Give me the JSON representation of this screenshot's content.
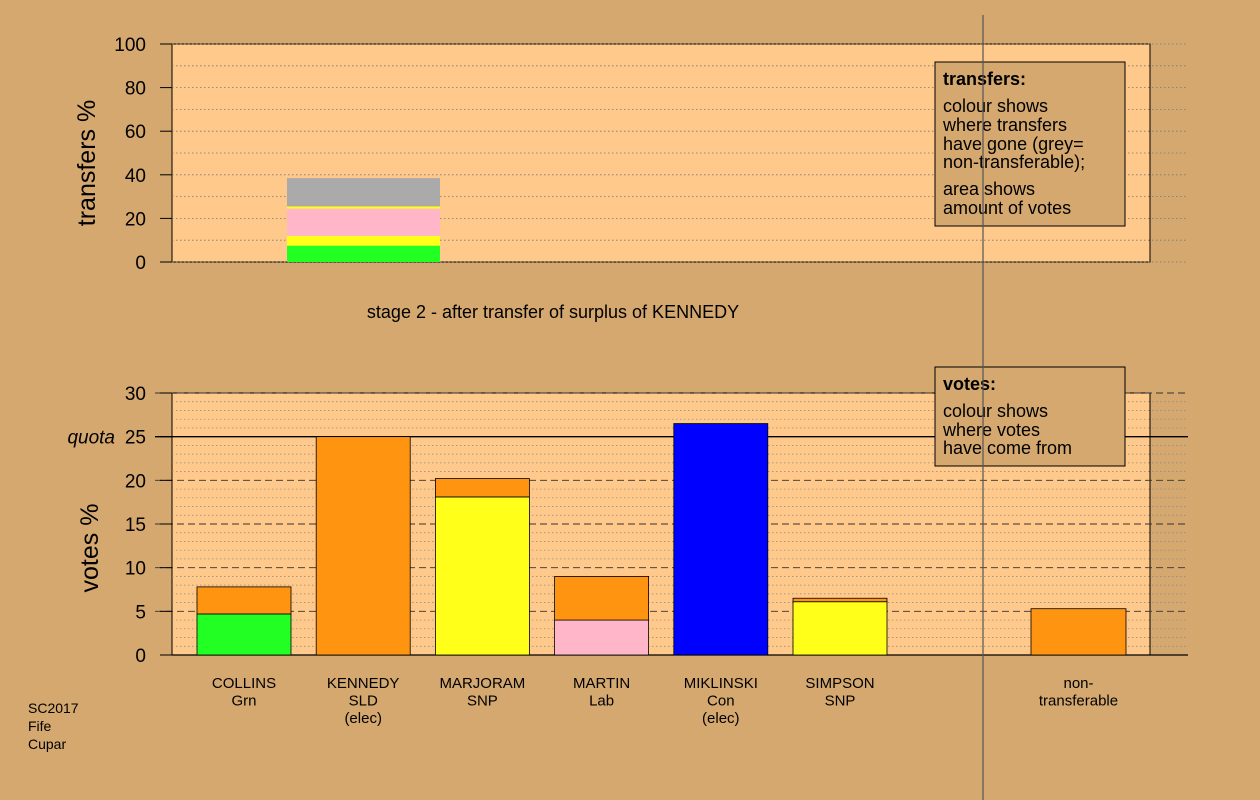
{
  "chart_data": [
    {
      "type": "bar",
      "subtype": "stacked",
      "panel": "transfers",
      "ylabel": "transfers %",
      "ylim": [
        0,
        100
      ],
      "yticks": [
        0,
        20,
        40,
        60,
        80,
        100
      ],
      "caption": "stage 2 - after transfer of surplus of KENNEDY",
      "legend": {
        "position": "top-right",
        "title": "transfers:",
        "lines1": [
          "colour shows",
          "where transfers",
          "have gone (grey=",
          "non-transferable);"
        ],
        "lines2": [
          "area shows",
          "amount of votes"
        ]
      },
      "bars": [
        {
          "name": "KENNEDY",
          "segments": [
            {
              "to": "COLLINS",
              "color": "#22ff22",
              "value": 7.5
            },
            {
              "to": "MARJORAM",
              "color": "#ffff1a",
              "value": 4.5
            },
            {
              "to": "MARTIN",
              "color": "#ffb6c8",
              "value": 12.5
            },
            {
              "to": "SIMPSON",
              "color": "#ffff1a",
              "value": 1.0
            },
            {
              "to": "non-transferable",
              "color": "#aaaaaa",
              "value": 13.0
            }
          ]
        }
      ]
    },
    {
      "type": "bar",
      "subtype": "stacked",
      "panel": "votes",
      "ylabel": "votes %",
      "ylim": [
        0,
        30
      ],
      "yticks": [
        0,
        5,
        10,
        15,
        20,
        25,
        30
      ],
      "quota": 25,
      "quota_label": "quota",
      "legend": {
        "position": "top-right",
        "title": "votes:",
        "lines": [
          "colour shows",
          "where votes",
          "have come from"
        ]
      },
      "candidates": [
        {
          "name": "COLLINS",
          "party": "Grn",
          "status": "",
          "segments": [
            {
              "color": "#22ff22",
              "value": 4.7
            },
            {
              "color": "#ff9411",
              "value": 3.1
            }
          ]
        },
        {
          "name": "KENNEDY",
          "party": "SLD",
          "status": "(elec)",
          "segments": [
            {
              "color": "#ff9411",
              "value": 25.0
            }
          ]
        },
        {
          "name": "MARJORAM",
          "party": "SNP",
          "status": "",
          "segments": [
            {
              "color": "#ffff1a",
              "value": 18.1
            },
            {
              "color": "#ff9411",
              "value": 2.1
            }
          ]
        },
        {
          "name": "MARTIN",
          "party": "Lab",
          "status": "",
          "segments": [
            {
              "color": "#ffb6c8",
              "value": 4.0
            },
            {
              "color": "#ff9411",
              "value": 5.0
            }
          ]
        },
        {
          "name": "MIKLINSKI",
          "party": "Con",
          "status": "(elec)",
          "segments": [
            {
              "color": "#0000ff",
              "value": 26.5
            }
          ]
        },
        {
          "name": "SIMPSON",
          "party": "SNP",
          "status": "",
          "segments": [
            {
              "color": "#ffff1a",
              "value": 6.1
            },
            {
              "color": "#ff9411",
              "value": 0.4
            }
          ]
        }
      ],
      "nontransferable": {
        "label1": "non-",
        "label2": "transferable",
        "color": "#ff9411",
        "value": 5.3
      }
    }
  ],
  "footer": {
    "lines": [
      "SC2017",
      "Fife",
      "Cupar"
    ]
  },
  "colors": {
    "background": "#d4a86f",
    "plot_area": "#ffc98b"
  }
}
